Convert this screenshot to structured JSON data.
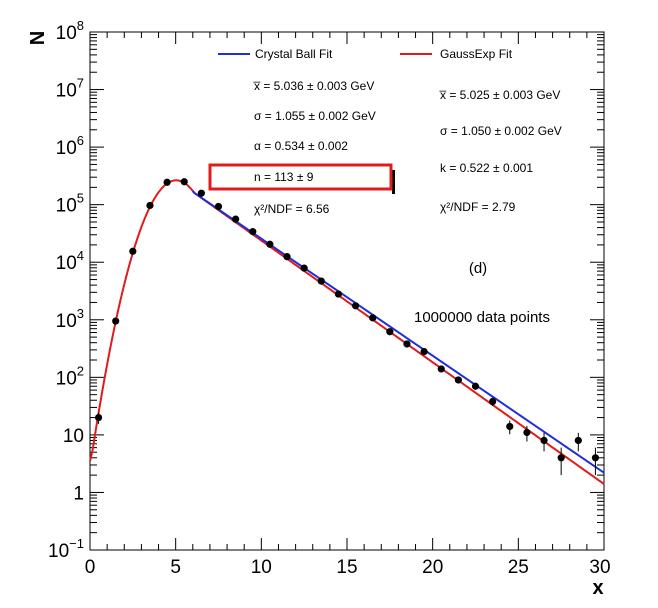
{
  "chart_data": {
    "type": "scatter",
    "xlabel": "x",
    "ylabel": "N",
    "xlim": [
      0,
      30
    ],
    "ylim": [
      0.1,
      100000000
    ],
    "yscale": "log",
    "x_ticks": [
      "0",
      "5",
      "10",
      "15",
      "20",
      "25",
      "30"
    ],
    "y_ticks": [
      {
        "base": "10",
        "exp": "8",
        "value": 100000000
      },
      {
        "base": "10",
        "exp": "7",
        "value": 10000000
      },
      {
        "base": "10",
        "exp": "6",
        "value": 1000000
      },
      {
        "base": "10",
        "exp": "5",
        "value": 100000
      },
      {
        "base": "10",
        "exp": "4",
        "value": 10000
      },
      {
        "base": "10",
        "exp": "3",
        "value": 1000
      },
      {
        "base": "10",
        "exp": "2",
        "value": 100
      },
      {
        "base": "10",
        "exp": "",
        "value": 10
      },
      {
        "base": "1",
        "exp": "",
        "value": 1
      },
      {
        "base": "10",
        "exp": "−1",
        "value": 0.1
      }
    ],
    "points": [
      {
        "x": 0.5,
        "y": 20
      },
      {
        "x": 1.5,
        "y": 950
      },
      {
        "x": 2.5,
        "y": 15500
      },
      {
        "x": 3.5,
        "y": 97000
      },
      {
        "x": 4.5,
        "y": 245000
      },
      {
        "x": 5.5,
        "y": 250000
      },
      {
        "x": 6.5,
        "y": 158000
      },
      {
        "x": 7.5,
        "y": 93000
      },
      {
        "x": 8.5,
        "y": 56000
      },
      {
        "x": 9.5,
        "y": 34000
      },
      {
        "x": 10.5,
        "y": 20500
      },
      {
        "x": 11.5,
        "y": 12500
      },
      {
        "x": 12.5,
        "y": 7900
      },
      {
        "x": 13.5,
        "y": 4700
      },
      {
        "x": 14.5,
        "y": 2800
      },
      {
        "x": 15.5,
        "y": 1750
      },
      {
        "x": 16.5,
        "y": 1080
      },
      {
        "x": 17.5,
        "y": 620
      },
      {
        "x": 18.5,
        "y": 380
      },
      {
        "x": 19.5,
        "y": 280
      },
      {
        "x": 20.5,
        "y": 140
      },
      {
        "x": 21.5,
        "y": 90
      },
      {
        "x": 22.5,
        "y": 70
      },
      {
        "x": 23.5,
        "y": 38
      },
      {
        "x": 24.5,
        "y": 14
      },
      {
        "x": 25.5,
        "y": 11
      },
      {
        "x": 26.5,
        "y": 8
      },
      {
        "x": 27.5,
        "y": 4
      },
      {
        "x": 28.5,
        "y": 8
      },
      {
        "x": 29.5,
        "y": 4
      }
    ],
    "fits": [
      {
        "name": "Crystal Ball Fit",
        "color": "#1f2ed8",
        "y_at_30": 2.2
      },
      {
        "name": "GaussExp Fit",
        "color": "#e01b1b",
        "y_at_30": 1.4
      }
    ],
    "fit_peak_x": 5.03,
    "fit_sigma": 1.05,
    "fit_peak_y": 265000,
    "fit_y_at_0": 3.5,
    "texts": {
      "cb_xbar": "x̅ = 5.036 ± 0.003 GeV",
      "cb_sigma": "σ = 1.055 ± 0.002 GeV",
      "cb_alpha": "α = 0.534 ± 0.002",
      "cb_n": "n = 113 ± 9",
      "cb_chi2": "χ²/NDF = 6.56",
      "ge_xbar": "x̅ = 5.025 ± 0.003 GeV",
      "ge_sigma": "σ = 1.050 ± 0.002 GeV",
      "ge_k": "k = 0.522 ± 0.001",
      "ge_chi2": "χ²/NDF = 2.79",
      "panel_label": "(d)",
      "data_count": "1000000 data points"
    },
    "highlight_color": "#e01b1b"
  }
}
